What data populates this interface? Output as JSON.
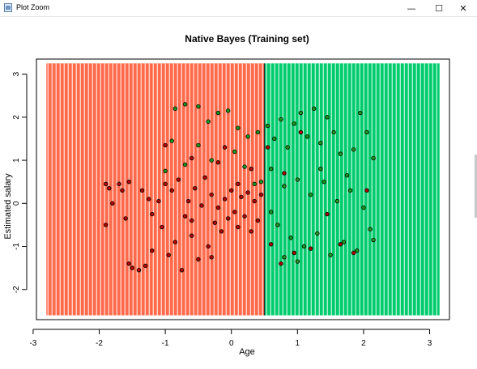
{
  "window": {
    "title": "Plot Zoom",
    "minimize_glyph": "—",
    "maximize_glyph": "☐",
    "close_glyph": "✕"
  },
  "chart_data": {
    "type": "scatter",
    "title": "Native Bayes (Training set)",
    "xlabel": "Age",
    "ylabel": "Estimated salary",
    "xlim": [
      -2.95,
      3.3
    ],
    "ylim": [
      -2.7,
      3.35
    ],
    "xticks": [
      -3,
      -2,
      -1,
      0,
      1,
      2,
      3
    ],
    "yticks": [
      -2,
      -1,
      0,
      1,
      2,
      3
    ],
    "grid": false,
    "legend": "none",
    "decision_regions": [
      {
        "class": 0,
        "color": "#ff6347",
        "x_range": [
          -2.8,
          0.5
        ],
        "y_range": [
          -2.6,
          3.25
        ]
      },
      {
        "class": 1,
        "color": "#00c96a",
        "x_range": [
          0.5,
          3.15
        ],
        "y_range": [
          -2.6,
          3.25
        ]
      }
    ],
    "class_colors": {
      "0": "#b40000",
      "1": "#1a9a1a"
    },
    "points": [
      {
        "x": -1.9,
        "y": 0.45,
        "c": 0
      },
      {
        "x": -1.85,
        "y": 0.35,
        "c": 0
      },
      {
        "x": -1.8,
        "y": 0.0,
        "c": 0
      },
      {
        "x": -1.9,
        "y": -0.5,
        "c": 0
      },
      {
        "x": -1.7,
        "y": 0.45,
        "c": 0
      },
      {
        "x": -1.65,
        "y": 0.3,
        "c": 0
      },
      {
        "x": -1.6,
        "y": -0.35,
        "c": 0
      },
      {
        "x": -1.55,
        "y": 0.5,
        "c": 0
      },
      {
        "x": -1.5,
        "y": -1.5,
        "c": 0
      },
      {
        "x": -1.55,
        "y": -1.4,
        "c": 0
      },
      {
        "x": -1.4,
        "y": -1.55,
        "c": 0
      },
      {
        "x": -1.3,
        "y": -1.45,
        "c": 0
      },
      {
        "x": -1.35,
        "y": 0.3,
        "c": 0
      },
      {
        "x": -1.25,
        "y": 0.1,
        "c": 0
      },
      {
        "x": -1.2,
        "y": -0.25,
        "c": 0
      },
      {
        "x": -1.1,
        "y": 0.05,
        "c": 0
      },
      {
        "x": -1.05,
        "y": -0.55,
        "c": 0
      },
      {
        "x": -1.0,
        "y": 0.45,
        "c": 0
      },
      {
        "x": -0.95,
        "y": -1.2,
        "c": 0
      },
      {
        "x": -0.9,
        "y": 0.3,
        "c": 0
      },
      {
        "x": -0.85,
        "y": -0.9,
        "c": 0
      },
      {
        "x": -0.8,
        "y": 0.55,
        "c": 0
      },
      {
        "x": -0.75,
        "y": -1.55,
        "c": 0
      },
      {
        "x": -0.7,
        "y": -0.3,
        "c": 0
      },
      {
        "x": -0.65,
        "y": 0.05,
        "c": 0
      },
      {
        "x": -0.6,
        "y": -0.75,
        "c": 0
      },
      {
        "x": -0.55,
        "y": 0.35,
        "c": 0
      },
      {
        "x": -0.5,
        "y": -1.3,
        "c": 0
      },
      {
        "x": -0.45,
        "y": -0.05,
        "c": 0
      },
      {
        "x": -0.4,
        "y": 0.6,
        "c": 0
      },
      {
        "x": -0.35,
        "y": -1.0,
        "c": 0
      },
      {
        "x": -0.3,
        "y": 0.2,
        "c": 0
      },
      {
        "x": -0.25,
        "y": -0.45,
        "c": 0
      },
      {
        "x": -0.2,
        "y": 0.95,
        "c": 0
      },
      {
        "x": -0.15,
        "y": -0.65,
        "c": 0
      },
      {
        "x": -0.1,
        "y": 0.1,
        "c": 0
      },
      {
        "x": -0.05,
        "y": -0.35,
        "c": 0
      },
      {
        "x": 0.0,
        "y": 0.3,
        "c": 0
      },
      {
        "x": 0.05,
        "y": -0.2,
        "c": 0
      },
      {
        "x": 0.1,
        "y": -0.55,
        "c": 0
      },
      {
        "x": 0.15,
        "y": 0.15,
        "c": 0
      },
      {
        "x": 0.2,
        "y": -0.3,
        "c": 0
      },
      {
        "x": 0.25,
        "y": 0.25,
        "c": 0
      },
      {
        "x": 0.3,
        "y": -0.65,
        "c": 0
      },
      {
        "x": 0.35,
        "y": 0.05,
        "c": 0
      },
      {
        "x": 0.4,
        "y": -0.4,
        "c": 0
      },
      {
        "x": 0.45,
        "y": 0.2,
        "c": 0
      },
      {
        "x": -1.2,
        "y": -1.1,
        "c": 0
      },
      {
        "x": -0.6,
        "y": -0.4,
        "c": 0
      },
      {
        "x": -0.2,
        "y": -0.1,
        "c": 0
      },
      {
        "x": 0.1,
        "y": 0.45,
        "c": 0
      },
      {
        "x": -1.0,
        "y": 1.35,
        "c": 0
      },
      {
        "x": -0.6,
        "y": 1.05,
        "c": 0
      },
      {
        "x": -0.1,
        "y": 1.3,
        "c": 0
      },
      {
        "x": 0.3,
        "y": 0.8,
        "c": 0
      },
      {
        "x": -0.3,
        "y": -1.25,
        "c": 0
      },
      {
        "x": -0.85,
        "y": 2.2,
        "c": 1
      },
      {
        "x": -0.7,
        "y": 2.3,
        "c": 1
      },
      {
        "x": -0.5,
        "y": 2.25,
        "c": 1
      },
      {
        "x": -0.35,
        "y": 1.9,
        "c": 1
      },
      {
        "x": -0.2,
        "y": 2.1,
        "c": 1
      },
      {
        "x": -0.05,
        "y": 2.15,
        "c": 1
      },
      {
        "x": 0.1,
        "y": 1.75,
        "c": 1
      },
      {
        "x": 0.25,
        "y": 1.55,
        "c": 1
      },
      {
        "x": -0.9,
        "y": 1.45,
        "c": 1
      },
      {
        "x": -0.5,
        "y": 1.35,
        "c": 1
      },
      {
        "x": 0.05,
        "y": 1.2,
        "c": 1
      },
      {
        "x": -1.0,
        "y": 0.75,
        "c": 1
      },
      {
        "x": -0.7,
        "y": 0.9,
        "c": 1
      },
      {
        "x": -0.3,
        "y": 1.0,
        "c": 1
      },
      {
        "x": 0.2,
        "y": 0.85,
        "c": 1
      },
      {
        "x": 0.4,
        "y": 1.65,
        "c": 1
      },
      {
        "x": 0.35,
        "y": 0.45,
        "c": 1
      },
      {
        "x": 0.45,
        "y": 0.5,
        "c": 1
      },
      {
        "x": 0.55,
        "y": 1.8,
        "c": 1
      },
      {
        "x": 0.65,
        "y": 1.5,
        "c": 1
      },
      {
        "x": 0.75,
        "y": 1.95,
        "c": 1
      },
      {
        "x": 0.85,
        "y": 1.3,
        "c": 1
      },
      {
        "x": 0.95,
        "y": 1.85,
        "c": 1
      },
      {
        "x": 1.05,
        "y": 2.1,
        "c": 1
      },
      {
        "x": 1.15,
        "y": 1.55,
        "c": 1
      },
      {
        "x": 1.25,
        "y": 2.2,
        "c": 1
      },
      {
        "x": 1.35,
        "y": 1.4,
        "c": 1
      },
      {
        "x": 1.45,
        "y": 2.0,
        "c": 1
      },
      {
        "x": 1.55,
        "y": 1.65,
        "c": 1
      },
      {
        "x": 1.65,
        "y": 1.15,
        "c": 1
      },
      {
        "x": 1.75,
        "y": 0.65,
        "c": 1
      },
      {
        "x": 1.85,
        "y": 1.25,
        "c": 1
      },
      {
        "x": 1.95,
        "y": 2.1,
        "c": 1
      },
      {
        "x": 2.05,
        "y": 1.65,
        "c": 1
      },
      {
        "x": 2.15,
        "y": 1.05,
        "c": 1
      },
      {
        "x": 0.6,
        "y": 0.8,
        "c": 1
      },
      {
        "x": 0.8,
        "y": 0.4,
        "c": 1
      },
      {
        "x": 1.0,
        "y": 0.55,
        "c": 1
      },
      {
        "x": 1.2,
        "y": 0.2,
        "c": 1
      },
      {
        "x": 1.4,
        "y": 0.5,
        "c": 1
      },
      {
        "x": 1.6,
        "y": 0.05,
        "c": 1
      },
      {
        "x": 1.8,
        "y": 0.3,
        "c": 1
      },
      {
        "x": 2.0,
        "y": -0.1,
        "c": 1
      },
      {
        "x": 0.7,
        "y": -0.5,
        "c": 1
      },
      {
        "x": 0.9,
        "y": -0.8,
        "c": 1
      },
      {
        "x": 1.1,
        "y": -1.0,
        "c": 1
      },
      {
        "x": 1.3,
        "y": -0.7,
        "c": 1
      },
      {
        "x": 1.5,
        "y": -1.2,
        "c": 1
      },
      {
        "x": 1.7,
        "y": -0.9,
        "c": 1
      },
      {
        "x": 1.9,
        "y": -1.1,
        "c": 1
      },
      {
        "x": 2.1,
        "y": -0.6,
        "c": 1
      },
      {
        "x": 0.6,
        "y": -0.2,
        "c": 1
      },
      {
        "x": 0.8,
        "y": -1.25,
        "c": 1
      },
      {
        "x": 1.0,
        "y": -1.35,
        "c": 1
      },
      {
        "x": 2.15,
        "y": -0.85,
        "c": 1
      },
      {
        "x": 1.35,
        "y": 0.8,
        "c": 1
      },
      {
        "x": 0.8,
        "y": 0.7,
        "c": 0
      },
      {
        "x": 0.6,
        "y": -0.95,
        "c": 0
      },
      {
        "x": 0.95,
        "y": -1.15,
        "c": 0
      },
      {
        "x": 0.75,
        "y": -1.4,
        "c": 0
      },
      {
        "x": 1.2,
        "y": -1.05,
        "c": 0
      },
      {
        "x": 1.45,
        "y": -0.25,
        "c": 0
      },
      {
        "x": 1.65,
        "y": -0.95,
        "c": 0
      },
      {
        "x": 1.85,
        "y": -1.15,
        "c": 0
      },
      {
        "x": 2.05,
        "y": 0.3,
        "c": 0
      },
      {
        "x": 1.05,
        "y": 1.65,
        "c": 0
      },
      {
        "x": 0.55,
        "y": 1.3,
        "c": 0
      }
    ]
  }
}
